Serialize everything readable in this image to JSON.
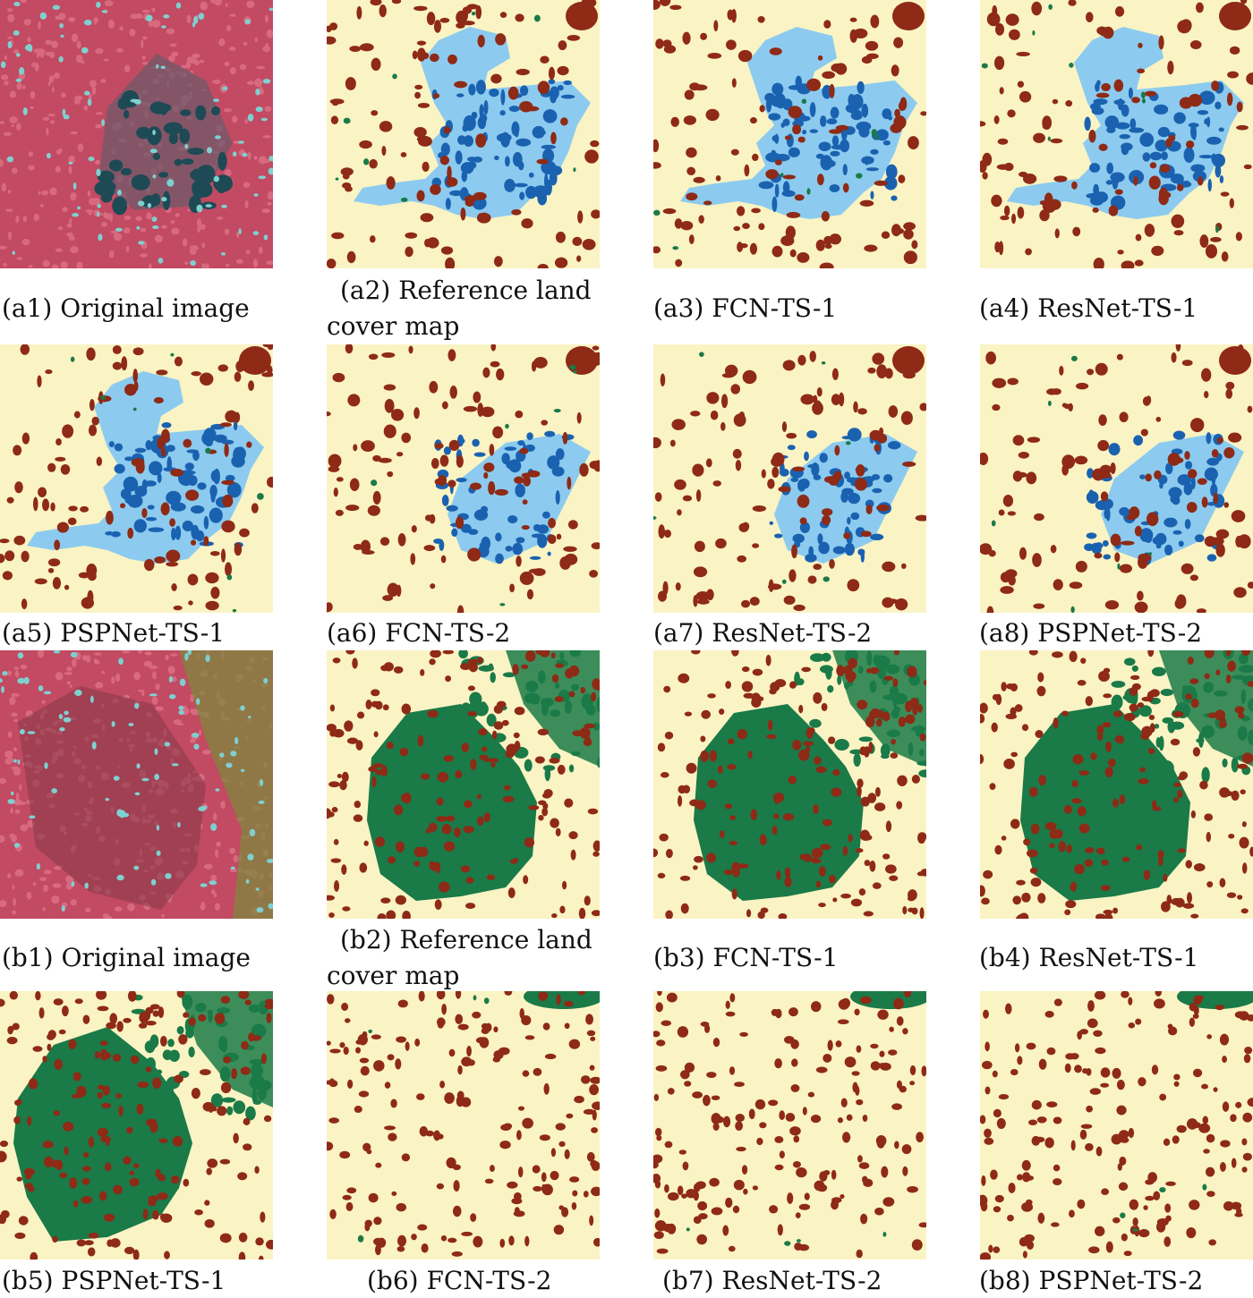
{
  "captions": {
    "a1": "(a1) Original image",
    "a2_line1": "(a2) Reference land",
    "a2_line2": "cover map",
    "a3": "(a3) FCN-TS-1",
    "a4": "(a4) ResNet-TS-1",
    "a5": "(a5) PSPNet-TS-1",
    "a6": "(a6) FCN-TS-2",
    "a7": "(a7) ResNet-TS-2",
    "a8": "(a8) PSPNet-TS-2",
    "b1": "(b1) Original image",
    "b2_line1": "(b2) Reference land",
    "b2_line2": "cover map",
    "b3": "(b3) FCN-TS-1",
    "b4": "(b4) ResNet-TS-1",
    "b5": "(b5) PSPNet-TS-1",
    "b6": "(b6) FCN-TS-2",
    "b7": "(b7) ResNet-TS-2",
    "b8": "(b8) PSPNet-TS-2"
  },
  "colors": {
    "background_land": "#faf3c4",
    "built_up": "#8e2a16",
    "shallow_water": "#8ccbef",
    "deep_water": "#1a62b0",
    "vegetation": "#1a7a48",
    "false_color_base": "#c24a62"
  }
}
